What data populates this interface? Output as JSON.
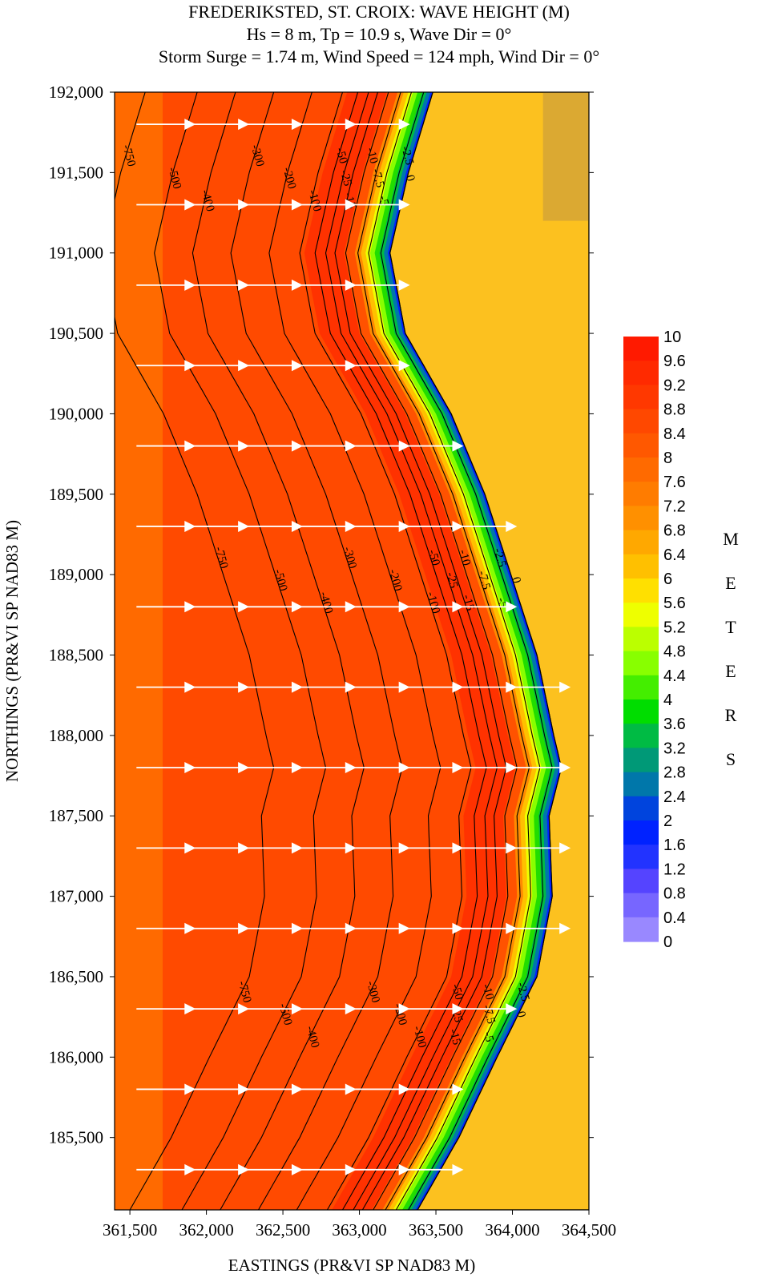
{
  "title": {
    "line1": "FREDERIKSTED, ST. CROIX: WAVE HEIGHT (M)",
    "line2": "Hs = 8 m, Tp = 10.9 s, Wave Dir = 0°",
    "line3": "Storm Surge = 1.74 m, Wind Speed = 124 mph, Wind Dir = 0°"
  },
  "chart_data": {
    "type": "heatmap",
    "xlabel": "EASTINGS (PR&VI SP NAD83 M)",
    "ylabel": "NORTHINGS (PR&VI SP NAD83 M)",
    "xlim": [
      361400,
      364500
    ],
    "ylim": [
      185050,
      192000
    ],
    "x_ticks": [
      361500,
      362000,
      362500,
      363000,
      363500,
      364000,
      364500
    ],
    "x_tick_labels": [
      "361,500",
      "362,000",
      "362,500",
      "363,000",
      "363,500",
      "364,000",
      "364,500"
    ],
    "y_ticks": [
      185500,
      186000,
      186500,
      187000,
      187500,
      188000,
      188500,
      189000,
      189500,
      190000,
      190500,
      191000,
      191500,
      192000
    ],
    "y_tick_labels": [
      "185,500",
      "186,000",
      "186,500",
      "187,000",
      "187,500",
      "188,000",
      "188,500",
      "189,000",
      "189,500",
      "190,000",
      "190,500",
      "191,000",
      "191,500",
      "192,000"
    ],
    "colorbar": {
      "unit_label": "METERS",
      "levels": [
        "10",
        "9.6",
        "9.2",
        "8.8",
        "8.4",
        "8",
        "7.6",
        "7.2",
        "6.8",
        "6.4",
        "6",
        "5.6",
        "5.2",
        "4.8",
        "4.4",
        "4",
        "3.6",
        "3.2",
        "2.8",
        "2.4",
        "2",
        "1.6",
        "1.2",
        "0.8",
        "0.4",
        "0"
      ],
      "colors": [
        "#ff1a00",
        "#ff2a00",
        "#ff3800",
        "#ff4800",
        "#ff5800",
        "#ff6a00",
        "#ff7c00",
        "#ff9000",
        "#ffa800",
        "#ffc000",
        "#ffe000",
        "#eeff00",
        "#bbff00",
        "#88ff00",
        "#44ee00",
        "#00dd00",
        "#00bb44",
        "#009977",
        "#0077aa",
        "#0044dd",
        "#0022ff",
        "#2233ff",
        "#5544ff",
        "#7766ff",
        "#9988ff",
        "#bbaaff"
      ]
    },
    "shoreline_easting": [
      {
        "n": 192000,
        "e": 363480
      },
      {
        "n": 191500,
        "e": 363320
      },
      {
        "n": 191000,
        "e": 363200
      },
      {
        "n": 190500,
        "e": 363300
      },
      {
        "n": 190000,
        "e": 363600
      },
      {
        "n": 189500,
        "e": 363820
      },
      {
        "n": 189000,
        "e": 363990
      },
      {
        "n": 188500,
        "e": 364160
      },
      {
        "n": 188000,
        "e": 364270
      },
      {
        "n": 187800,
        "e": 364320
      },
      {
        "n": 187500,
        "e": 364240
      },
      {
        "n": 187000,
        "e": 364260
      },
      {
        "n": 186500,
        "e": 364160
      },
      {
        "n": 186000,
        "e": 363900
      },
      {
        "n": 185500,
        "e": 363650
      },
      {
        "n": 185050,
        "e": 363380
      }
    ],
    "depth_contours": [
      {
        "label": "-750",
        "easting": 361560
      },
      {
        "label": "-500",
        "easting": 361900
      },
      {
        "label": "-400",
        "easting": 362150
      },
      {
        "label": "-300",
        "easting": 362400
      },
      {
        "label": "-200",
        "easting": 362650
      },
      {
        "label": "-100",
        "easting": 362850
      },
      {
        "label": "-50",
        "easting": 362950
      },
      {
        "label": "-25",
        "easting": 363020
      },
      {
        "label": "-15",
        "easting": 363080
      },
      {
        "label": "-10",
        "easting": 363150
      },
      {
        "label": "-7.5",
        "easting": 363230
      },
      {
        "label": "-5",
        "easting": 363300
      },
      {
        "label": "-2.5",
        "easting": 363380
      },
      {
        "label": "0",
        "easting": 363440
      }
    ],
    "wave_direction_vectors_deg": 0,
    "vector_grid_eastings": [
      361700,
      362050,
      362400,
      362750,
      363100,
      363450,
      363800,
      364150
    ],
    "vector_grid_northings": [
      185300,
      185800,
      186300,
      186800,
      187300,
      187800,
      188300,
      188800,
      189300,
      189800,
      190300,
      190800,
      191300,
      191800
    ]
  }
}
